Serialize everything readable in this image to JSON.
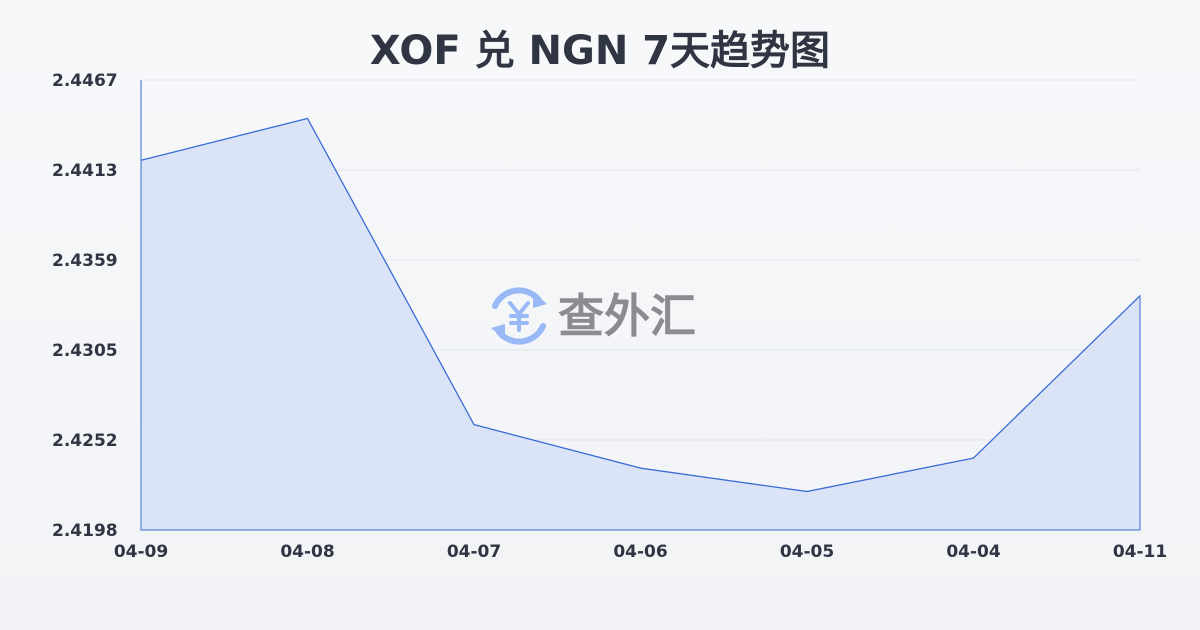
{
  "chart_data": {
    "type": "area",
    "title": "XOF 兑 NGN 7天趋势图",
    "categories": [
      "04-09",
      "04-08",
      "04-07",
      "04-06",
      "04-05",
      "04-04",
      "04-11"
    ],
    "values": [
      2.4419,
      2.4444,
      2.4261,
      2.4235,
      2.4221,
      2.4241,
      2.4338
    ],
    "yticks": [
      "2.4467",
      "2.4413",
      "2.4359",
      "2.4305",
      "2.4252",
      "2.4198"
    ],
    "ylim": [
      2.4198,
      2.4467
    ],
    "grid": true,
    "colors": {
      "line": "#3a6bd6",
      "fill": "#d6e1f6",
      "grid": "#e3e6ea"
    }
  },
  "watermark": {
    "text": "查外汇",
    "icon": "yen-exchange-icon",
    "icon_color": "#8fb3f5"
  }
}
